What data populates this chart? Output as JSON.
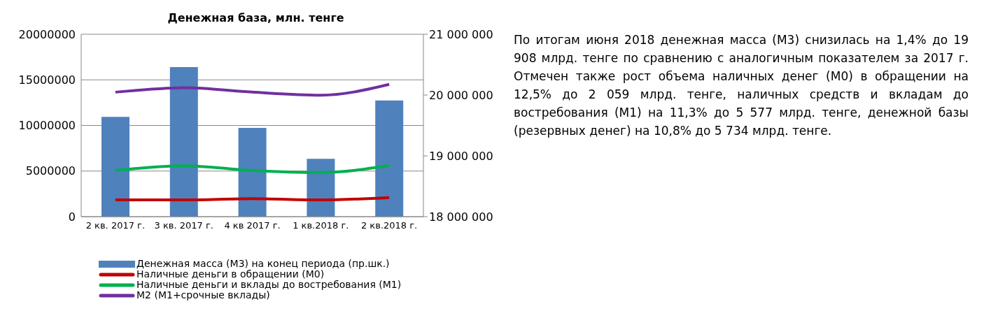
{
  "chart_data": {
    "type": "bar",
    "title": "Денежная база, млн. тенге",
    "categories": [
      "2 кв. 2017 г.",
      "3 кв. 2017 г.",
      "4 кв 2017 г.",
      "1 кв.2018 г.",
      "2 кв.2018 г."
    ],
    "series": [
      {
        "name": "Денежная масса (М3) на конец периода (пр.шк.)",
        "axis": "y2",
        "color": "#4f81bd",
        "values": [
          19640000,
          20460000,
          19460000,
          18950000,
          19910000
        ]
      },
      {
        "name": "Наличные деньги  в обращении (М0)",
        "type": "line",
        "color": "#c00000",
        "values": [
          1830000,
          1830000,
          1980000,
          1830000,
          2090000
        ]
      },
      {
        "name": "Наличные деньги и вклады до востребования (М1)",
        "type": "line",
        "color": "#00b050",
        "values": [
          5060000,
          5580000,
          5060000,
          4840000,
          5610000
        ]
      },
      {
        "name": "М2 (М1+срочные вклады)",
        "type": "line",
        "color": "#7030a0",
        "values": [
          13650000,
          14130000,
          13650000,
          13320000,
          14500000
        ]
      }
    ],
    "ylim": [
      0,
      20000000
    ],
    "yticks": [
      0,
      5000000,
      10000000,
      15000000,
      20000000
    ],
    "y2lim": [
      18000000,
      21000000
    ],
    "y2ticks": [
      {
        "value": 18000000,
        "label": "18 000 000"
      },
      {
        "value": 19000000,
        "label": "19 000 000"
      },
      {
        "value": 20000000,
        "label": "20 000 000"
      },
      {
        "value": 21000000,
        "label": "21 000 000"
      }
    ],
    "grid": "y",
    "legend": "bottom",
    "marker": "none",
    "annotations": [
      "По итогам июня 2018  денежная масса (М3) снизилась на 1,4% до 19 908 млрд. тенге по сравнению с аналогичным показателем за 2017 г. Отмечен также рост объема наличных денег (М0) в обращении  на 12,5% до 2 059 млрд. тенге, наличных средств и вкладам до востребования (М1) на 11,3% до 5 577 млрд. тенге, денежной базы (резервных денег) на 10,8% до 5 734 млрд. тенге."
    ]
  }
}
